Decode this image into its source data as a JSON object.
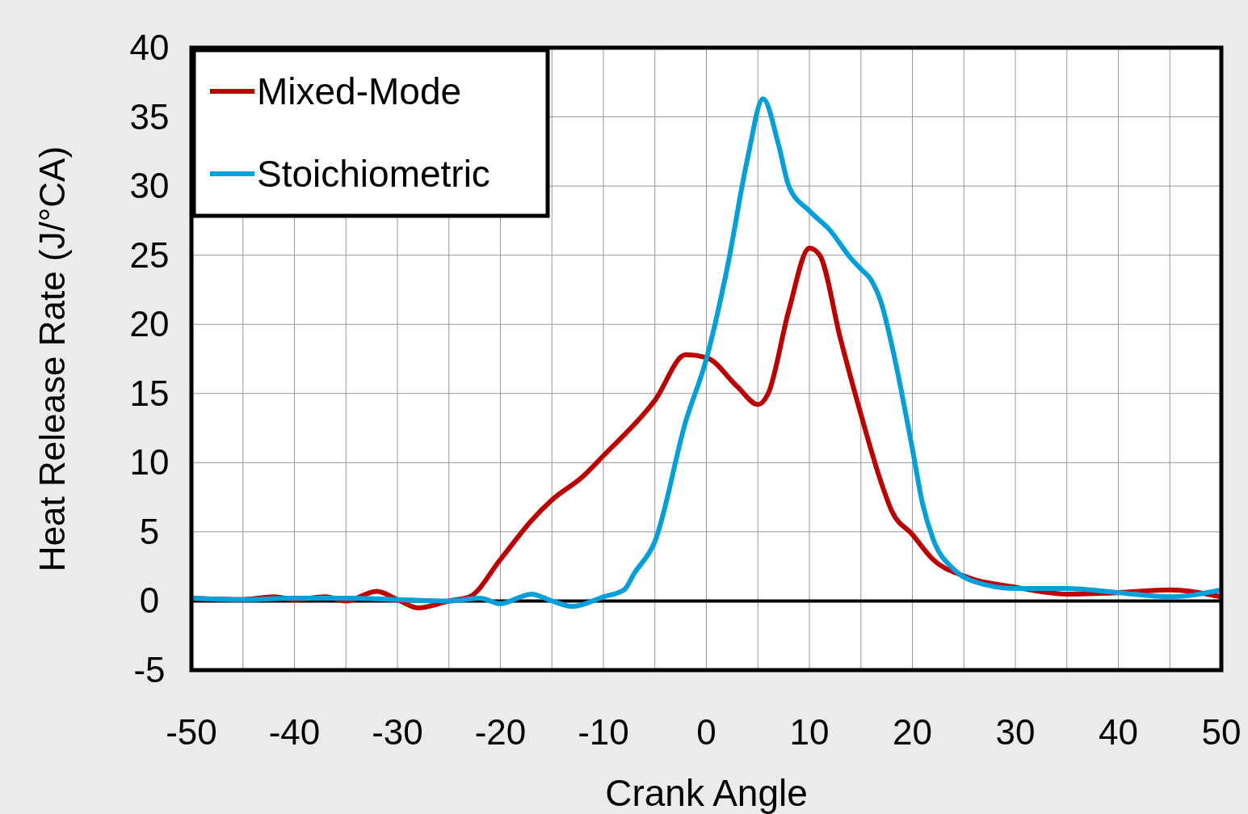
{
  "chart_data": {
    "type": "line",
    "xlabel": "Crank Angle",
    "ylabel": "Heat Release Rate (J/°CA)",
    "xlim": [
      -50,
      50
    ],
    "ylim": [
      -5,
      40
    ],
    "xticks": [
      -50,
      {
        "value": -45,
        "label": null
      },
      -40,
      {
        "value": -35,
        "label": null
      },
      -30,
      {
        "value": -25,
        "label": null
      },
      -20,
      {
        "value": -15,
        "label": null
      },
      -10,
      {
        "value": -5,
        "label": null
      },
      0,
      {
        "value": 5,
        "label": null
      },
      10,
      {
        "value": 15,
        "label": null
      },
      20,
      {
        "value": 25,
        "label": null
      },
      30,
      {
        "value": 35,
        "label": null
      },
      40,
      {
        "value": 45,
        "label": null
      },
      50
    ],
    "yticks": [
      -5,
      0,
      5,
      10,
      15,
      20,
      25,
      30,
      35,
      40
    ],
    "grid": true,
    "legend": "top left",
    "line_style": "solid",
    "marker": "none",
    "ref_lines": [
      {
        "axis": "y",
        "value": 0,
        "color": "#000000"
      }
    ],
    "series": [
      {
        "name": "Mixed-Mode",
        "color": "#c00000",
        "x": [
          -50,
          -45,
          -42,
          -40,
          -37,
          -35,
          -32,
          -30,
          -28,
          -25,
          -23,
          -20,
          -17,
          -15,
          -12,
          -10,
          -5,
          -2,
          0,
          3,
          5,
          6,
          8,
          10,
          11,
          13,
          15,
          17,
          18,
          20,
          22,
          25,
          30,
          35,
          40,
          45,
          50
        ],
        "values": [
          0.2,
          0.1,
          0.3,
          0.1,
          0.3,
          0,
          0.7,
          0.1,
          -0.5,
          0,
          0.3,
          3,
          5.8,
          7.3,
          9,
          10.5,
          14.5,
          17.8,
          17.6,
          15.5,
          14.2,
          15,
          21,
          25.5,
          25,
          19,
          13.5,
          8.5,
          6.5,
          4.8,
          3,
          1.8,
          1,
          0.5,
          0.6,
          0.8,
          0.3
        ]
      },
      {
        "name": "Stoichiometric",
        "color": "#00a0dc",
        "x": [
          -50,
          -45,
          -40,
          -35,
          -30,
          -25,
          -22,
          -20,
          -18,
          -17,
          -15,
          -13,
          -10,
          -8,
          -7,
          -5,
          -2,
          0,
          2,
          4,
          5.5,
          7,
          8,
          10,
          12,
          14,
          15,
          16,
          17,
          18,
          20,
          21,
          22,
          24,
          26,
          30,
          35,
          40,
          45,
          50
        ],
        "values": [
          0.2,
          0.1,
          0.2,
          0.2,
          0.1,
          0,
          0.2,
          -0.2,
          0.3,
          0.5,
          0,
          -0.4,
          0.3,
          0.8,
          2,
          4.3,
          13,
          17.5,
          24,
          32,
          36.3,
          33,
          30,
          28.2,
          26.8,
          24.8,
          24,
          23.2,
          21.5,
          18.5,
          11,
          7,
          4.5,
          2.3,
          1.4,
          0.9,
          0.9,
          0.6,
          0.3,
          0.8
        ]
      }
    ]
  }
}
